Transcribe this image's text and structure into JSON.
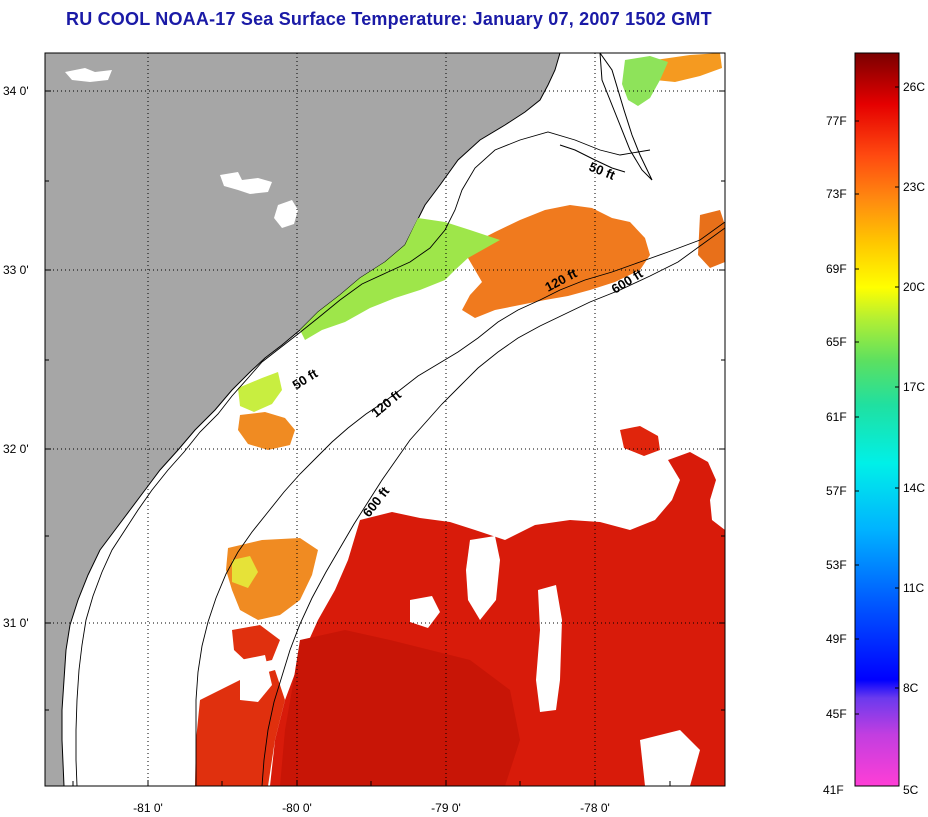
{
  "title": "RU COOL  NOAA-17  Sea Surface Temperature:  January 07, 2007 1502 GMT",
  "map": {
    "lat_labels": [
      "34 0'",
      "33 0'",
      "32 0'",
      "31 0'"
    ],
    "lon_labels": [
      "-81 0'",
      "-80 0'",
      "-79 0'",
      "-78 0'"
    ],
    "isobath_labels": [
      {
        "text": "50 ft"
      },
      {
        "text": "120 ft"
      },
      {
        "text": "600 ft"
      },
      {
        "text": "50 ft"
      },
      {
        "text": "120 ft"
      },
      {
        "text": "600 ft"
      }
    ],
    "colors": {
      "land": "#a6a6a6",
      "missing": "#ffffff",
      "warm": "#dd1a08",
      "orange": "#f0821a",
      "green": "#9ee64a"
    }
  },
  "colorbar": {
    "fahrenheit_labels": [
      "77F",
      "73F",
      "69F",
      "65F",
      "61F",
      "57F",
      "53F",
      "49F",
      "45F",
      "41F"
    ],
    "celsius_labels": [
      "26C",
      "23C",
      "20C",
      "17C",
      "14C",
      "11C",
      "8C",
      "5C"
    ]
  }
}
